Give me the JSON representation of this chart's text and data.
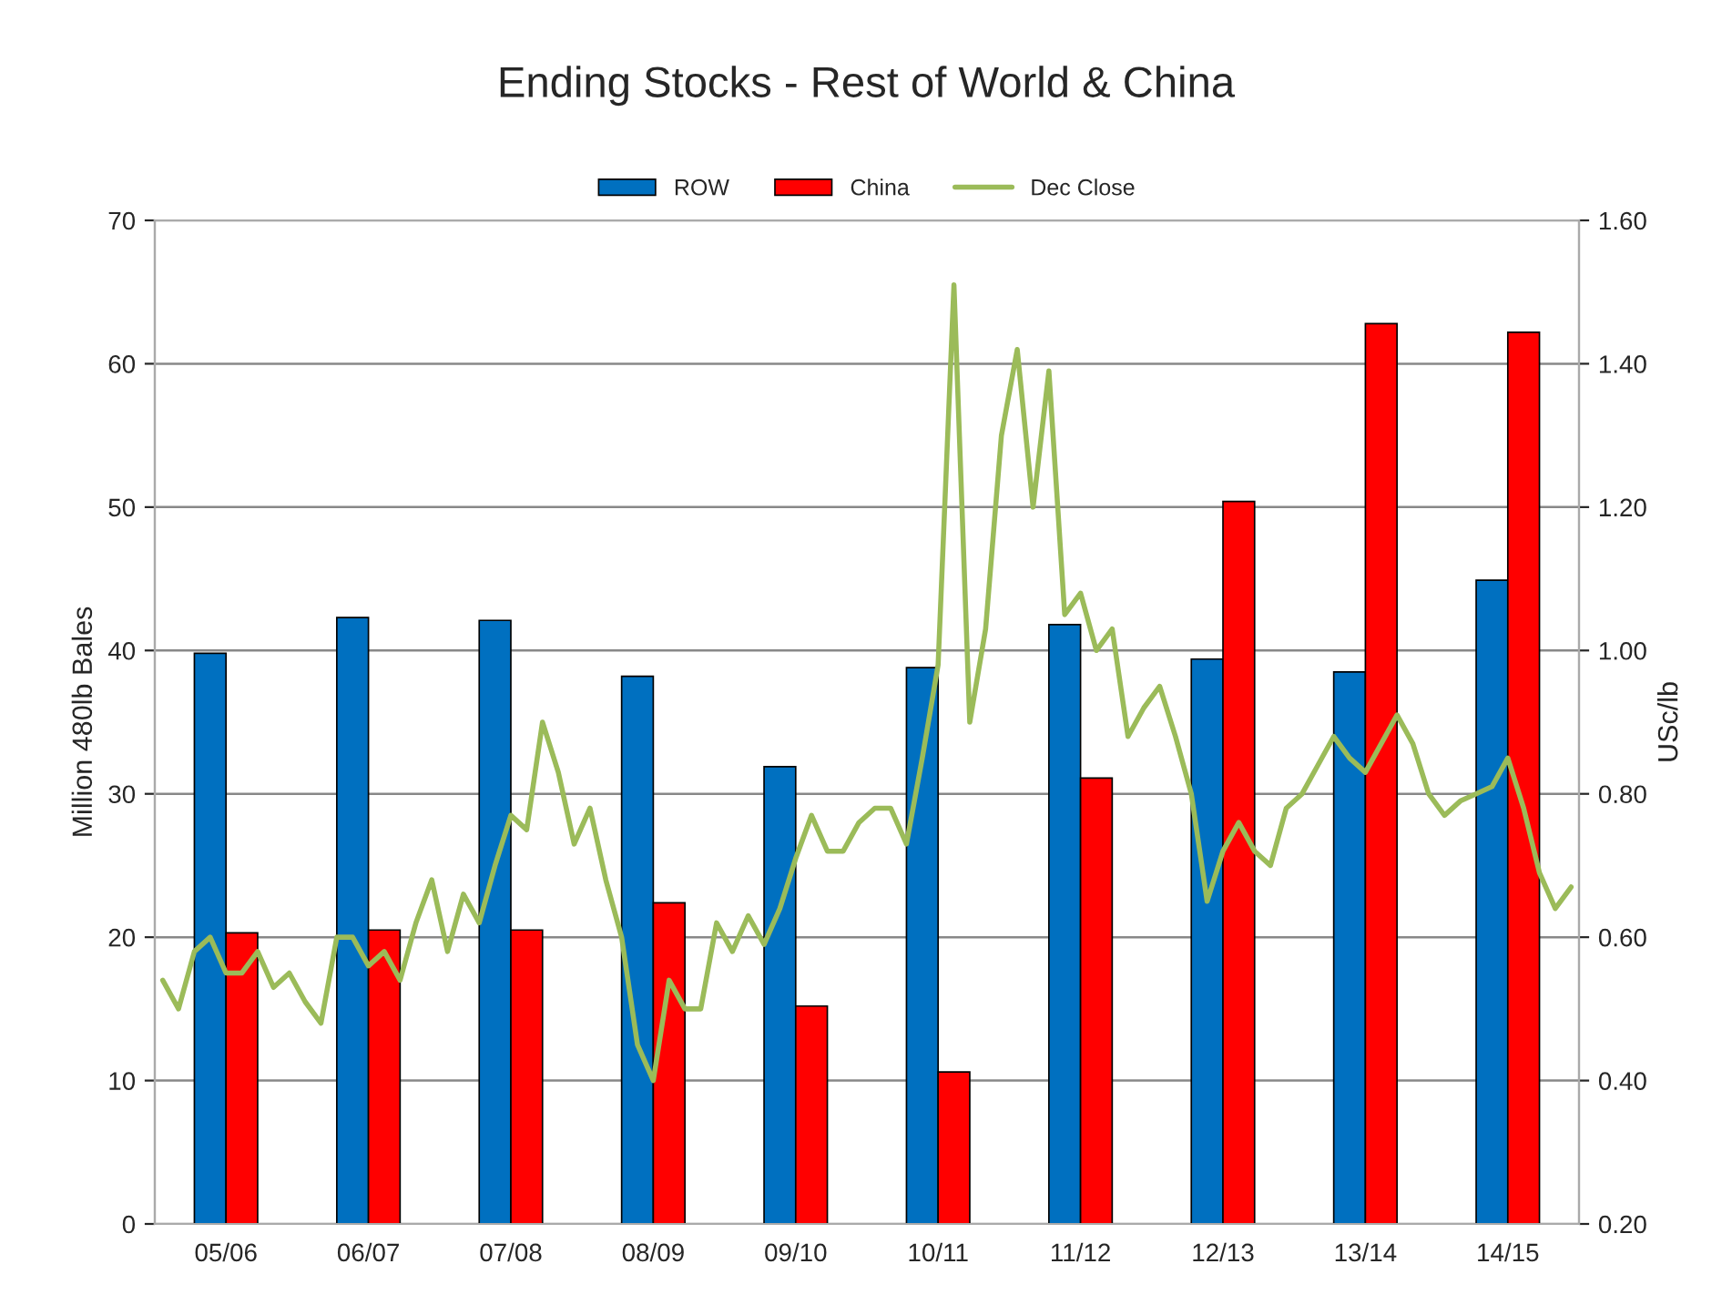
{
  "chart_data": {
    "type": "bar",
    "title": "Ending Stocks - Rest of World & China",
    "ylabel": "Million 480lb Bales",
    "y2label": "USc/lb",
    "categories": [
      null,
      null,
      null,
      null,
      "05/06",
      null,
      null,
      null,
      null,
      null,
      null,
      null,
      null,
      "06/07",
      null,
      null,
      null,
      null,
      null,
      null,
      null,
      null,
      "07/08",
      null,
      null,
      null,
      null,
      null,
      null,
      null,
      null,
      "08/09",
      null,
      null,
      null,
      null,
      null,
      null,
      null,
      null,
      "09/10",
      null,
      null,
      null,
      null,
      null,
      null,
      null,
      null,
      "10/11",
      null,
      null,
      null,
      null,
      null,
      null,
      null,
      null,
      "11/12",
      null,
      null,
      null,
      null,
      null,
      null,
      null,
      null,
      "12/13",
      null,
      null,
      null,
      null,
      null,
      null,
      null,
      null,
      "13/14",
      null,
      null,
      null,
      null,
      null,
      null,
      null,
      null,
      "14/15",
      null,
      null,
      null,
      null
    ],
    "series": [
      {
        "name": "ROW",
        "color": "#0070c0",
        "values": [
          null,
          null,
          null,
          39.8,
          null,
          null,
          null,
          null,
          null,
          null,
          null,
          null,
          42.3,
          null,
          null,
          null,
          null,
          null,
          null,
          null,
          null,
          42.1,
          null,
          null,
          null,
          null,
          null,
          null,
          null,
          null,
          38.2,
          null,
          null,
          null,
          null,
          null,
          null,
          null,
          null,
          31.9,
          null,
          null,
          null,
          null,
          null,
          null,
          null,
          null,
          38.8,
          null,
          null,
          null,
          null,
          null,
          null,
          null,
          null,
          41.8,
          null,
          null,
          null,
          null,
          null,
          null,
          null,
          null,
          39.4,
          null,
          null,
          null,
          null,
          null,
          null,
          null,
          null,
          38.5,
          null,
          null,
          null,
          null,
          null,
          null,
          null,
          null,
          44.9,
          null,
          null,
          null,
          null,
          null
        ]
      },
      {
        "name": "China",
        "color": "#ff0000",
        "values": [
          null,
          null,
          null,
          null,
          null,
          20.3,
          null,
          null,
          null,
          null,
          null,
          null,
          null,
          null,
          20.5,
          null,
          null,
          null,
          null,
          null,
          null,
          null,
          null,
          20.5,
          null,
          null,
          null,
          null,
          null,
          null,
          null,
          null,
          22.4,
          null,
          null,
          null,
          null,
          null,
          null,
          null,
          null,
          15.2,
          null,
          null,
          null,
          null,
          null,
          null,
          null,
          null,
          10.6,
          null,
          null,
          null,
          null,
          null,
          null,
          null,
          null,
          31.1,
          null,
          null,
          null,
          null,
          null,
          null,
          null,
          null,
          50.4,
          null,
          null,
          null,
          null,
          null,
          null,
          null,
          null,
          62.8,
          null,
          null,
          null,
          null,
          null,
          null,
          null,
          null,
          62.2,
          null,
          null,
          null
        ]
      },
      {
        "name": "Dec Close",
        "type": "line",
        "axis": "y2",
        "color": "#9bbb59",
        "values": [
          0.54,
          0.5,
          0.58,
          0.6,
          0.55,
          0.55,
          0.58,
          0.53,
          0.55,
          0.51,
          0.48,
          0.6,
          0.6,
          0.56,
          0.58,
          0.54,
          0.62,
          0.68,
          0.58,
          0.66,
          0.62,
          0.7,
          0.77,
          0.75,
          0.9,
          0.83,
          0.73,
          0.78,
          0.68,
          0.6,
          0.45,
          0.4,
          0.54,
          0.5,
          0.5,
          0.62,
          0.58,
          0.63,
          0.59,
          0.64,
          0.71,
          0.77,
          0.72,
          0.72,
          0.76,
          0.78,
          0.78,
          0.73,
          0.85,
          0.98,
          1.51,
          0.9,
          1.03,
          1.3,
          1.42,
          1.2,
          1.39,
          1.05,
          1.08,
          1.0,
          1.03,
          0.88,
          0.92,
          0.95,
          0.88,
          0.8,
          0.65,
          0.72,
          0.76,
          0.72,
          0.7,
          0.78,
          0.8,
          0.84,
          0.88,
          0.85,
          0.83,
          0.87,
          0.91,
          0.87,
          0.8,
          0.77,
          0.79,
          0.8,
          0.81,
          0.85,
          0.78,
          0.69,
          0.64,
          0.67
        ]
      }
    ],
    "ylim": [
      0,
      70
    ],
    "yticks": [
      0,
      10,
      20,
      30,
      40,
      50,
      60,
      70
    ],
    "y2lim": [
      0.2,
      1.6
    ],
    "y2ticks": [
      {
        "value": 0.2,
        "label": "0.20"
      },
      {
        "value": 0.4,
        "label": "0.40"
      },
      {
        "value": 0.6,
        "label": "0.60"
      },
      {
        "value": 0.8,
        "label": "0.80"
      },
      {
        "value": 1.0,
        "label": "1.00"
      },
      {
        "value": 1.2,
        "label": "1.20"
      },
      {
        "value": 1.4,
        "label": "1.40"
      },
      {
        "value": 1.6,
        "label": "1.60"
      }
    ],
    "grid": "y",
    "legend": "top"
  }
}
